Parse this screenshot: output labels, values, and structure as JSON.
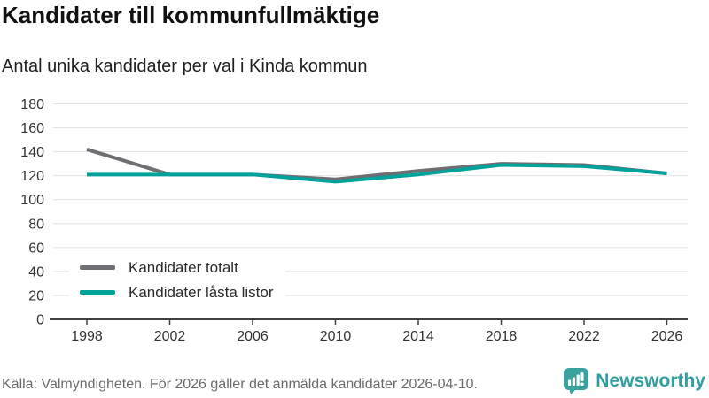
{
  "header": {
    "title": "Kandidater till kommunfullmäktige",
    "subtitle": "Antal unika kandidater per val i Kinda kommun"
  },
  "chart_data": {
    "type": "line",
    "x": [
      1998,
      2002,
      2006,
      2010,
      2014,
      2018,
      2022,
      2026
    ],
    "series": [
      {
        "name": "Kandidater totalt",
        "color": "#6E6E73",
        "values": [
          142,
          121,
          121,
          117,
          124,
          130,
          129,
          122
        ]
      },
      {
        "name": "Kandidater låsta listor",
        "color": "#00A29A",
        "values": [
          121,
          121,
          121,
          115,
          121,
          129,
          128,
          122
        ]
      }
    ],
    "title": "Kandidater till kommunfullmäktige",
    "subtitle": "Antal unika kandidater per val i Kinda kommun",
    "xlabel": "",
    "ylabel": "",
    "ylim": [
      0,
      180
    ],
    "yticks": [
      0,
      20,
      40,
      60,
      80,
      100,
      120,
      140,
      160,
      180
    ],
    "xticks": [
      1998,
      2002,
      2006,
      2010,
      2014,
      2018,
      2022,
      2026
    ],
    "grid": "horizontal",
    "legend_position": "inside-bottom-left"
  },
  "legend": {
    "items": [
      {
        "label": "Kandidater totalt",
        "color": "#6E6E73"
      },
      {
        "label": "Kandidater låsta listor",
        "color": "#00A29A"
      }
    ]
  },
  "footer": {
    "source": "Källa: Valmyndigheten. För 2026 gäller det anmälda kandidater 2026-04-10.",
    "brand": "Newsworthy"
  },
  "colors": {
    "series_total": "#6E6E73",
    "series_locked": "#00A29A",
    "grid": "#E2E2E2",
    "axis": "#404040",
    "tick_label": "#333333",
    "brand_teal": "#3AA29E",
    "brand_text": "#2F9FA0",
    "source_text": "#6B6B6B"
  }
}
